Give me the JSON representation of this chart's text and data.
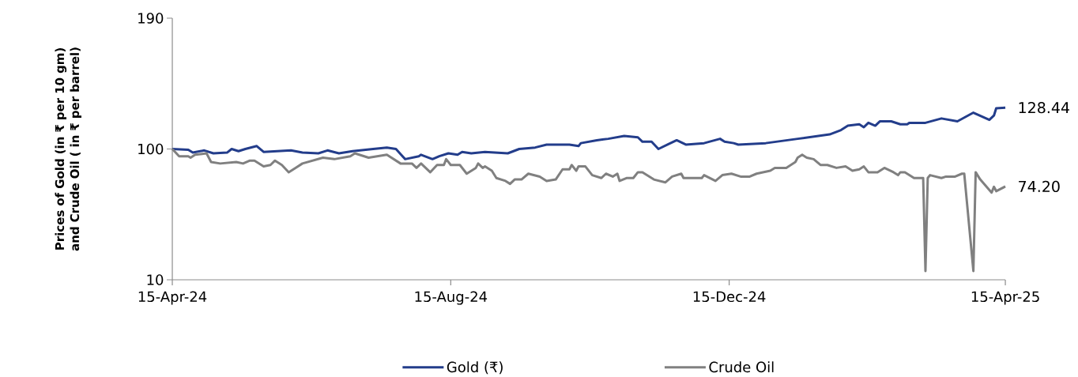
{
  "chart_data": {
    "type": "line",
    "ylabel": "Prices of Gold (in ₹ per 10 gm) and Crude Oil ( in ₹ per barrel)",
    "xlim": [
      "2024-04-15",
      "2025-04-15"
    ],
    "xticks": [
      {
        "value": "2024-04-15",
        "label": "15-Apr-24"
      },
      {
        "value": "2024-08-15",
        "label": "15-Aug-24"
      },
      {
        "value": "2024-12-15",
        "label": "15-Dec-24"
      },
      {
        "value": "2025-04-15",
        "label": "15-Apr-25"
      }
    ],
    "ylim": [
      10,
      190
    ],
    "yticks": [
      10,
      100,
      190
    ],
    "legend": "bottom",
    "series": [
      {
        "name": "Gold (₹)",
        "color": "#233d8b",
        "x": [
          "2024-04-15",
          "2024-04-22",
          "2024-04-24",
          "2024-04-29",
          "2024-05-03",
          "2024-05-09",
          "2024-05-11",
          "2024-05-14",
          "2024-05-17",
          "2024-05-22",
          "2024-05-25",
          "2024-06-06",
          "2024-06-11",
          "2024-06-18",
          "2024-06-22",
          "2024-06-27",
          "2024-07-03",
          "2024-07-12",
          "2024-07-18",
          "2024-07-22",
          "2024-07-26",
          "2024-08-01",
          "2024-08-02",
          "2024-08-07",
          "2024-08-10",
          "2024-08-14",
          "2024-08-18",
          "2024-08-20",
          "2024-08-24",
          "2024-08-30",
          "2024-09-09",
          "2024-09-14",
          "2024-09-21",
          "2024-09-26",
          "2024-10-06",
          "2024-10-10",
          "2024-10-11",
          "2024-10-18",
          "2024-10-23",
          "2024-10-30",
          "2024-11-05",
          "2024-11-07",
          "2024-11-11",
          "2024-11-14",
          "2024-11-18",
          "2024-11-22",
          "2024-11-26",
          "2024-12-04",
          "2024-12-11",
          "2024-12-13",
          "2024-12-17",
          "2024-12-19",
          "2024-12-31",
          "2025-01-14",
          "2025-01-28",
          "2025-02-02",
          "2025-02-05",
          "2025-02-10",
          "2025-02-12",
          "2025-02-14",
          "2025-02-17",
          "2025-02-19",
          "2025-02-24",
          "2025-02-28",
          "2025-03-03",
          "2025-03-04",
          "2025-03-11",
          "2025-03-18",
          "2025-03-25",
          "2025-04-01",
          "2025-04-08",
          "2025-04-10",
          "2025-04-11",
          "2025-04-15"
        ],
        "values": [
          100,
          99.5,
          97.5,
          99,
          97,
          97.5,
          100,
          98.5,
          100,
          102,
          98,
          99,
          97.5,
          97,
          99,
          97,
          98.5,
          100,
          101,
          100,
          93,
          95,
          96,
          93,
          95,
          97,
          96,
          98,
          97,
          98,
          97,
          100,
          101,
          103,
          103,
          102,
          104,
          106,
          107,
          109,
          108,
          105,
          105,
          100,
          103,
          106,
          103,
          104,
          107,
          105,
          104,
          103,
          104,
          107,
          110,
          113,
          116,
          117,
          115,
          118,
          116,
          119,
          119,
          117,
          117,
          118,
          118,
          121,
          119,
          125,
          120,
          123,
          128,
          128.44
        ]
      },
      {
        "name": "Crude Oil",
        "color": "#808080",
        "x": [
          "2024-04-15",
          "2024-04-18",
          "2024-04-22",
          "2024-04-23",
          "2024-04-25",
          "2024-04-30",
          "2024-05-02",
          "2024-05-06",
          "2024-05-13",
          "2024-05-16",
          "2024-05-19",
          "2024-05-21",
          "2024-05-25",
          "2024-05-28",
          "2024-05-30",
          "2024-06-02",
          "2024-06-05",
          "2024-06-08",
          "2024-06-11",
          "2024-06-20",
          "2024-06-25",
          "2024-07-02",
          "2024-07-04",
          "2024-07-10",
          "2024-07-18",
          "2024-07-24",
          "2024-07-29",
          "2024-07-31",
          "2024-08-02",
          "2024-08-06",
          "2024-08-09",
          "2024-08-12",
          "2024-08-13",
          "2024-08-15",
          "2024-08-19",
          "2024-08-22",
          "2024-08-26",
          "2024-08-27",
          "2024-08-29",
          "2024-08-30",
          "2024-09-02",
          "2024-09-04",
          "2024-09-08",
          "2024-09-10",
          "2024-09-12",
          "2024-09-15",
          "2024-09-18",
          "2024-09-23",
          "2024-09-26",
          "2024-09-30",
          "2024-10-03",
          "2024-10-06",
          "2024-10-07",
          "2024-10-09",
          "2024-10-10",
          "2024-10-13",
          "2024-10-16",
          "2024-10-20",
          "2024-10-22",
          "2024-10-25",
          "2024-10-27",
          "2024-10-28",
          "2024-10-31",
          "2024-11-03",
          "2024-11-05",
          "2024-11-07",
          "2024-11-12",
          "2024-11-17",
          "2024-11-20",
          "2024-11-24",
          "2024-11-25",
          "2024-12-03",
          "2024-12-04",
          "2024-12-09",
          "2024-12-12",
          "2024-12-16",
          "2024-12-20",
          "2024-12-24",
          "2024-12-27",
          "2025-01-02",
          "2025-01-04",
          "2025-01-09",
          "2025-01-13",
          "2025-01-14",
          "2025-01-16",
          "2025-01-18",
          "2025-01-21",
          "2025-01-24",
          "2025-01-27",
          "2025-01-31",
          "2025-02-04",
          "2025-02-07",
          "2025-02-10",
          "2025-02-12",
          "2025-02-14",
          "2025-02-18",
          "2025-02-21",
          "2025-02-25",
          "2025-02-27",
          "2025-02-28",
          "2025-03-02",
          "2025-03-06",
          "2025-03-10",
          "2025-03-11",
          "2025-03-12",
          "2025-03-13",
          "2025-03-18",
          "2025-03-20",
          "2025-03-24",
          "2025-03-27",
          "2025-03-28",
          "2025-04-01",
          "2025-04-02",
          "2025-04-04",
          "2025-04-09",
          "2025-04-10",
          "2025-04-11",
          "2025-04-15"
        ],
        "values": [
          100,
          95,
          95,
          94,
          96,
          97,
          91,
          90,
          91,
          90,
          92,
          92,
          88,
          89,
          92,
          89,
          84,
          87,
          90,
          94,
          93,
          95,
          97,
          94,
          96,
          90,
          90,
          87,
          90,
          84,
          89,
          89,
          93,
          89,
          89,
          83,
          87,
          90,
          87,
          88,
          85,
          80,
          78,
          76,
          79,
          79,
          83,
          81,
          78,
          79,
          86,
          86,
          89,
          85,
          88,
          88,
          82,
          80,
          83,
          81,
          83,
          78,
          80,
          80,
          84,
          84,
          79,
          77,
          81,
          83,
          80,
          80,
          82,
          78,
          82,
          83,
          81,
          81,
          83,
          85,
          87,
          87,
          91,
          94,
          96,
          94,
          93,
          89,
          89,
          87,
          88,
          85,
          86,
          88,
          84,
          84,
          87,
          84,
          82,
          84,
          84,
          80,
          80,
          16,
          80,
          82,
          80,
          81,
          81,
          83,
          83,
          16,
          84,
          79,
          70,
          74,
          71,
          74.2
        ]
      }
    ],
    "annotations": [
      {
        "text": "128.44",
        "x": "2025-04-15",
        "y": 128.44
      },
      {
        "text": "74.20",
        "x": "2025-04-15",
        "y": 74.2
      }
    ]
  }
}
